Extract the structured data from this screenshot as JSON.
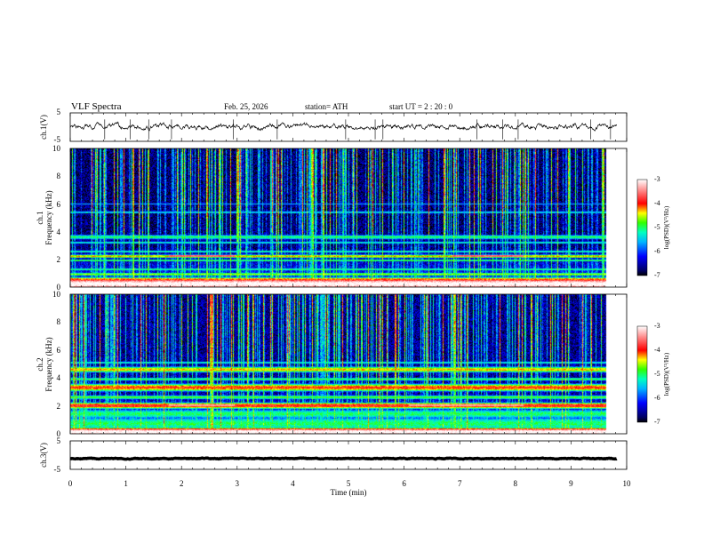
{
  "chart_data": {
    "type": "heatmap",
    "title": "VLF  Spectra",
    "date": "Feb. 25, 2026",
    "station": "station= ATH",
    "start_ut": "start  UT  =   2  : 20 : 0",
    "xlabel": "Time  (min)",
    "xlim": [
      0,
      10
    ],
    "xticks": [
      "0",
      "1",
      "2",
      "3",
      "4",
      "5",
      "6",
      "7",
      "8",
      "9",
      "10"
    ],
    "data_end_min": 9.82,
    "panels": [
      {
        "id": "ch1-voltage",
        "type": "line",
        "ylabel": "ch.1(V)",
        "ylim": [
          -5,
          5
        ],
        "yticks": [
          "5",
          "-5"
        ],
        "mean": 0.2,
        "noise_amplitude": 1.0,
        "spike_times_min": [
          0.62,
          1.08,
          1.41,
          1.82,
          2.93,
          3.72,
          4.95,
          5.48,
          5.62,
          7.31,
          7.77,
          8.05,
          9.35,
          9.71
        ]
      },
      {
        "id": "ch1-spectrogram",
        "type": "heatmap",
        "ylabel_prefix": "ch.1",
        "ylabel": "Frequency  (kHz)",
        "ylim_khz": [
          0,
          10
        ],
        "yticks": [
          "0",
          "2",
          "4",
          "6",
          "8",
          "10"
        ],
        "colorbar": {
          "label": "log(PSD)(V²/Hz)",
          "range": [
            -7,
            -3
          ],
          "ticks": [
            "-3",
            "-4",
            "-5",
            "-6",
            "-7"
          ]
        },
        "background_level": -6.7,
        "sferic_rate_per_min": 16,
        "bands": [
          {
            "f_khz": 0.2,
            "width_khz": 0.35,
            "level": -2.9
          },
          {
            "f_khz": 0.55,
            "width_khz": 0.12,
            "level": -4.2
          },
          {
            "f_khz": 0.9,
            "width_khz": 0.12,
            "level": -4.6
          },
          {
            "f_khz": 1.25,
            "width_khz": 0.1,
            "level": -5.0
          },
          {
            "f_khz": 1.9,
            "width_khz": 0.08,
            "level": -4.8
          },
          {
            "f_khz": 2.2,
            "width_khz": 0.12,
            "level": -4.3
          },
          {
            "f_khz": 2.55,
            "width_khz": 0.1,
            "level": -5.1
          },
          {
            "f_khz": 3.2,
            "width_khz": 0.1,
            "level": -5.2
          },
          {
            "f_khz": 3.6,
            "width_khz": 0.18,
            "level": -5.0
          },
          {
            "f_khz": 5.4,
            "width_khz": 0.1,
            "level": -5.3
          },
          {
            "f_khz": 6.0,
            "width_khz": 0.08,
            "level": -5.6
          }
        ],
        "hot_lines": [
          {
            "f_khz": 2.2,
            "t_start": 1.8,
            "t_end": 3.0,
            "level": -3.6
          },
          {
            "f_khz": 2.2,
            "t_start": 7.0,
            "t_end": 8.3,
            "level": -3.6
          }
        ]
      },
      {
        "id": "ch2-spectrogram",
        "type": "heatmap",
        "ylabel_prefix": "ch.2",
        "ylabel": "Frequency  (kHz)",
        "ylim_khz": [
          0,
          10
        ],
        "yticks": [
          "0",
          "2",
          "4",
          "6",
          "8",
          "10"
        ],
        "colorbar": {
          "label": "log(PSD)(V²/Hz)",
          "range": [
            -7,
            -3
          ],
          "ticks": [
            "-3",
            "-4",
            "-5",
            "-6",
            "-7"
          ]
        },
        "background_level": -6.6,
        "sferic_rate_per_min": 16,
        "bands": [
          {
            "f_khz": 0.1,
            "width_khz": 0.25,
            "level": -2.9
          },
          {
            "f_khz": 0.7,
            "width_khz": 0.5,
            "level": -5.0
          },
          {
            "f_khz": 1.4,
            "width_khz": 0.35,
            "level": -5.0
          },
          {
            "f_khz": 2.0,
            "width_khz": 0.2,
            "level": -3.8
          },
          {
            "f_khz": 2.6,
            "width_khz": 0.15,
            "level": -4.8
          },
          {
            "f_khz": 3.3,
            "width_khz": 0.25,
            "level": -4.0
          },
          {
            "f_khz": 3.9,
            "width_khz": 0.12,
            "level": -4.9
          },
          {
            "f_khz": 4.6,
            "width_khz": 0.2,
            "level": -4.3
          },
          {
            "f_khz": 5.1,
            "width_khz": 0.1,
            "level": -5.2
          }
        ],
        "hot_lines": [
          {
            "f_khz": 2.0,
            "t_start": 1.8,
            "t_end": 3.0,
            "level": -3.4
          },
          {
            "f_khz": 2.0,
            "t_start": 6.2,
            "t_end": 8.3,
            "level": -3.4
          }
        ]
      },
      {
        "id": "ch3-voltage",
        "type": "line",
        "ylabel": "ch.3(V)",
        "ylim": [
          -5,
          5
        ],
        "yticks": [
          "5",
          "-5"
        ],
        "mean": -1.2,
        "noise_amplitude": 0.15,
        "spike_times_min": []
      }
    ]
  }
}
